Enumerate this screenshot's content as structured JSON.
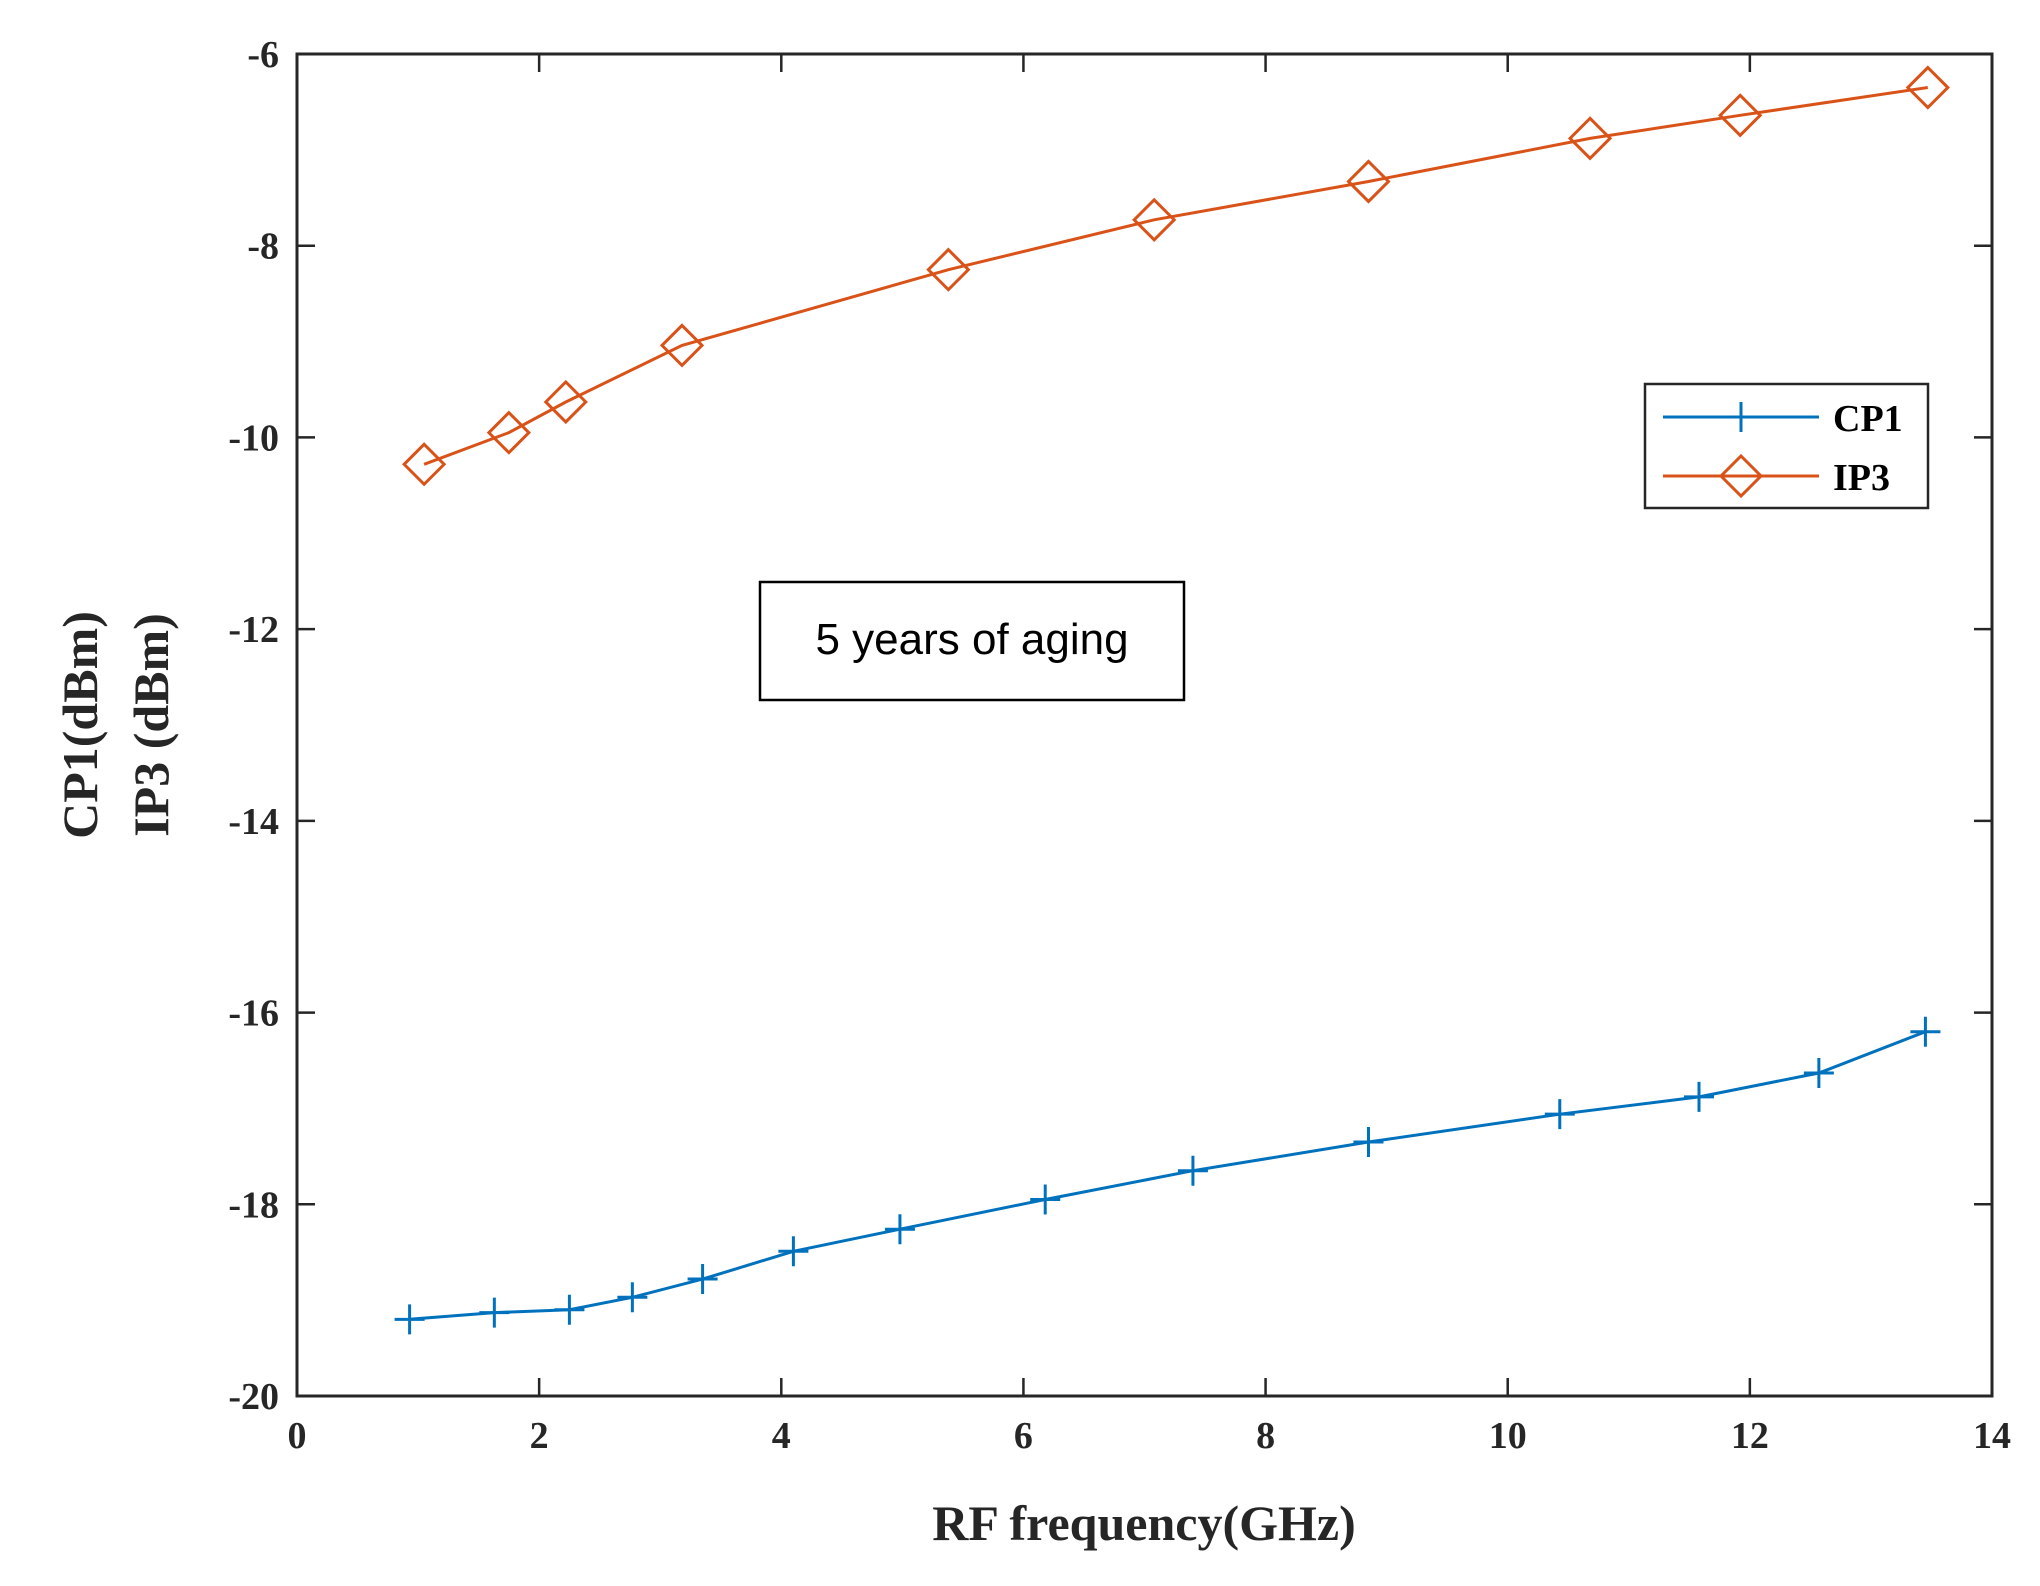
{
  "chart_data": {
    "type": "line",
    "title": "",
    "xlabel": "RF frequency(GHz)",
    "ylabel_lines": [
      "CP1(dBm)",
      "IP3 (dBm)"
    ],
    "xlim": [
      0,
      14
    ],
    "ylim": [
      -20,
      -6
    ],
    "xticks": [
      0,
      2,
      4,
      6,
      8,
      10,
      12,
      14
    ],
    "yticks": [
      -20,
      -18,
      -16,
      -14,
      -12,
      -10,
      -8,
      -6
    ],
    "grid": false,
    "legend_position": "top-right",
    "annotation": "5 years of aging",
    "series": [
      {
        "name": "CP1",
        "color": "#0072BD",
        "marker": "plus",
        "x": [
          0.93,
          1.63,
          2.25,
          2.77,
          3.35,
          4.1,
          4.98,
          6.18,
          7.4,
          8.85,
          10.43,
          11.58,
          12.57,
          13.45
        ],
        "y": [
          -19.2,
          -19.13,
          -19.1,
          -18.97,
          -18.78,
          -18.49,
          -18.26,
          -17.95,
          -17.65,
          -17.35,
          -17.06,
          -16.88,
          -16.63,
          -16.2
        ]
      },
      {
        "name": "IP3",
        "color": "#D95319",
        "marker": "diamond",
        "x": [
          1.05,
          1.75,
          2.22,
          3.18,
          5.38,
          7.08,
          8.85,
          10.68,
          11.92,
          13.47
        ],
        "y": [
          -10.28,
          -9.95,
          -9.63,
          -9.04,
          -8.25,
          -7.73,
          -7.33,
          -6.88,
          -6.64,
          -6.35
        ]
      }
    ]
  }
}
